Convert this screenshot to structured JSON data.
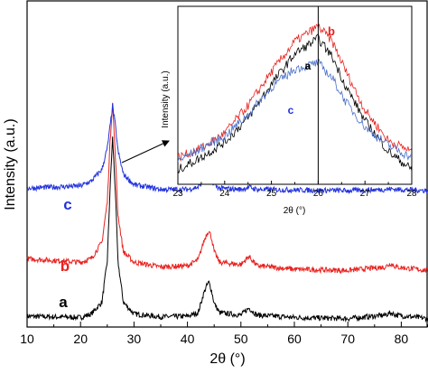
{
  "chart_data": [
    {
      "type": "line",
      "xlabel": "2θ (°)",
      "ylabel": "Intensity (a.u.)",
      "xlim": [
        10,
        85
      ],
      "xticks": [
        "10",
        "20",
        "30",
        "40",
        "50",
        "60",
        "70",
        "80"
      ],
      "yticks_shown": false,
      "grid": false,
      "legend": "none; curves labelled directly with letters a, b, c",
      "annotation": "arrow from main peak at ~26° to inset",
      "series": [
        {
          "name": "a",
          "color": "#000000",
          "baseline": 0.0,
          "x": [
            10,
            20,
            22,
            24,
            25,
            25.5,
            26,
            26.5,
            27,
            28,
            30,
            35,
            40,
            42,
            43,
            43.5,
            44,
            44.5,
            45,
            46,
            50,
            51.5,
            53,
            60,
            70,
            77,
            78,
            79,
            85
          ],
          "values": [
            0.3,
            0.2,
            0.5,
            1.5,
            5,
            11,
            15.5,
            11,
            5,
            1.5,
            0.5,
            0.25,
            0.3,
            0.6,
            2.2,
            2.8,
            3.2,
            2.5,
            1.4,
            0.6,
            0.4,
            1.0,
            0.4,
            0.2,
            0.1,
            0.4,
            0.6,
            0.4,
            0.1
          ]
        },
        {
          "name": "b",
          "color": "#e8221f",
          "baseline": 4.0,
          "x": [
            10,
            20,
            22,
            24,
            25,
            25.5,
            26,
            26.5,
            27,
            28,
            30,
            35,
            40,
            42,
            43,
            43.5,
            44,
            44.5,
            45,
            46,
            50,
            51.5,
            53,
            60,
            70,
            77,
            78,
            79,
            85
          ],
          "values": [
            1.2,
            0.9,
            1.2,
            2.6,
            6,
            11,
            14.5,
            10,
            5,
            1.8,
            0.9,
            0.5,
            0.6,
            1.1,
            2.6,
            3.2,
            3.6,
            3.0,
            1.8,
            0.9,
            0.7,
            1.4,
            0.6,
            0.3,
            0.2,
            0.5,
            0.8,
            0.5,
            0.2
          ]
        },
        {
          "name": "c",
          "color": "#2233dd",
          "baseline": 11.0,
          "x": [
            10,
            20,
            22,
            24,
            25,
            25.5,
            26,
            26.5,
            27,
            28,
            30,
            35,
            40,
            42,
            43,
            43.5,
            44,
            44.5,
            45,
            46,
            50,
            51.5,
            53,
            60,
            70,
            77,
            78,
            79,
            85
          ],
          "values": [
            0.2,
            0.4,
            0.8,
            1.8,
            3.6,
            5.4,
            7.2,
            5.6,
            3.4,
            1.4,
            0.5,
            0.1,
            0.1,
            0.3,
            0.8,
            1.0,
            1.2,
            0.9,
            0.5,
            0.2,
            0.1,
            0.3,
            0.1,
            0.05,
            0.0,
            0.1,
            0.15,
            0.1,
            0.0
          ]
        }
      ],
      "curve_labels": [
        {
          "text": "a",
          "color": "#000000",
          "series": "a"
        },
        {
          "text": "b",
          "color": "#e8221f",
          "series": "b"
        },
        {
          "text": "c",
          "color": "#2233dd",
          "series": "c"
        }
      ]
    },
    {
      "type": "line",
      "role": "inset (zoom of main peak)",
      "xlabel": "2θ (°)",
      "ylabel": "Intensity (a.u.)",
      "xlim": [
        23,
        28
      ],
      "xticks": [
        "23",
        "24",
        "25",
        "26",
        "27",
        "28"
      ],
      "yticks_shown": false,
      "grid": false,
      "reference_line_x": 26,
      "series": [
        {
          "name": "b",
          "color": "#e8221f",
          "x": [
            23,
            23.5,
            24,
            24.5,
            25,
            25.5,
            26,
            26.3,
            26.6,
            27,
            27.5,
            28
          ],
          "values": [
            0.14,
            0.2,
            0.3,
            0.48,
            0.7,
            0.9,
            1.0,
            0.9,
            0.7,
            0.45,
            0.25,
            0.18
          ]
        },
        {
          "name": "a",
          "color": "#000000",
          "x": [
            23,
            23.5,
            24,
            24.5,
            25,
            25.5,
            26,
            26.3,
            26.6,
            27,
            27.5,
            28
          ],
          "values": [
            0.06,
            0.14,
            0.24,
            0.4,
            0.62,
            0.82,
            0.92,
            0.8,
            0.6,
            0.38,
            0.18,
            0.06
          ]
        },
        {
          "name": "c",
          "color": "#4a70c8",
          "x": [
            23,
            23.5,
            24,
            24.5,
            25,
            25.5,
            26,
            26.3,
            26.6,
            27,
            27.5,
            28
          ],
          "values": [
            0.12,
            0.2,
            0.28,
            0.42,
            0.6,
            0.72,
            0.76,
            0.66,
            0.5,
            0.34,
            0.22,
            0.14
          ]
        }
      ],
      "curve_labels": [
        {
          "text": "b",
          "color": "#e8221f"
        },
        {
          "text": "a",
          "color": "#000000"
        },
        {
          "text": "c",
          "color": "#2233dd"
        }
      ]
    }
  ]
}
